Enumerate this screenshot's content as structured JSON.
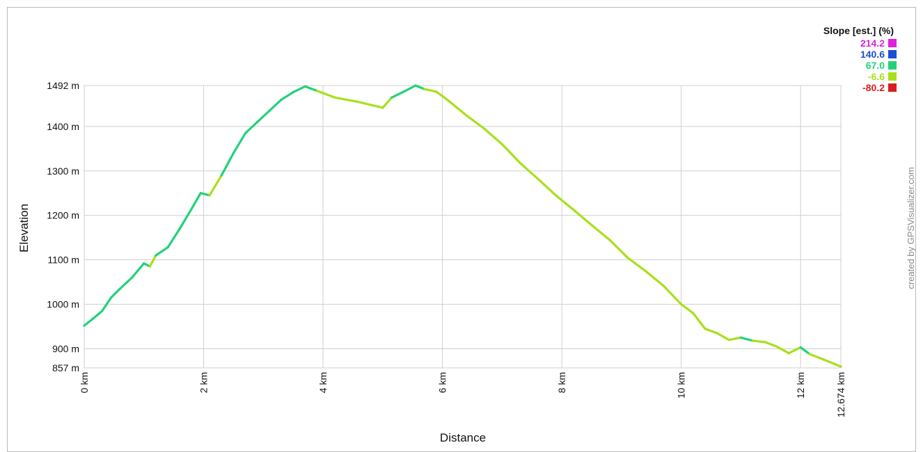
{
  "chart_data": {
    "type": "line",
    "xlabel": "Distance",
    "ylabel": "Elevation",
    "xlim": [
      0,
      12.674
    ],
    "ylim": [
      857,
      1492
    ],
    "x_ticks": [
      {
        "value": 0,
        "label": "0 km"
      },
      {
        "value": 2,
        "label": "2 km"
      },
      {
        "value": 4,
        "label": "4 km"
      },
      {
        "value": 6,
        "label": "6 km"
      },
      {
        "value": 8,
        "label": "8 km"
      },
      {
        "value": 10,
        "label": "10 km"
      },
      {
        "value": 12,
        "label": "12 km"
      },
      {
        "value": 12.674,
        "label": "12.674 km"
      }
    ],
    "y_ticks": [
      {
        "value": 857,
        "label": "857 m"
      },
      {
        "value": 900,
        "label": "900 m"
      },
      {
        "value": 1000,
        "label": "1000 m"
      },
      {
        "value": 1100,
        "label": "1100 m"
      },
      {
        "value": 1200,
        "label": "1200 m"
      },
      {
        "value": 1300,
        "label": "1300 m"
      },
      {
        "value": 1400,
        "label": "1400 m"
      },
      {
        "value": 1492,
        "label": "1492 m"
      }
    ],
    "grid": true,
    "legend": {
      "title": "Slope [est.] (%)",
      "placement": "top-right",
      "entries": [
        {
          "label": "214.2",
          "color": "#e020e0"
        },
        {
          "label": "140.6",
          "color": "#1a4fd6"
        },
        {
          "label": "67.0",
          "color": "#22d27a"
        },
        {
          "label": "-6.6",
          "color": "#a8e01a"
        },
        {
          "label": "-80.2",
          "color": "#d81e1e"
        }
      ]
    },
    "series": [
      {
        "x": [
          0,
          0.15,
          0.3,
          0.45,
          0.6,
          0.8,
          1.0,
          1.1,
          1.2,
          1.4,
          1.6,
          1.8,
          1.95,
          2.1,
          2.3,
          2.5,
          2.7,
          2.9,
          3.1,
          3.3,
          3.5,
          3.7,
          3.9,
          4.2,
          4.6,
          5.0,
          5.15,
          5.35,
          5.55,
          5.7,
          5.9,
          6.1,
          6.4,
          6.7,
          7.0,
          7.3,
          7.6,
          7.9,
          8.2,
          8.5,
          8.8,
          9.1,
          9.4,
          9.7,
          10.0,
          10.2,
          10.4,
          10.6,
          10.8,
          11.0,
          11.2,
          11.4,
          11.6,
          11.8,
          12.0,
          12.15,
          12.4,
          12.674
        ],
        "y": [
          952,
          968,
          985,
          1015,
          1035,
          1060,
          1092,
          1085,
          1110,
          1128,
          1170,
          1215,
          1250,
          1245,
          1290,
          1340,
          1385,
          1410,
          1435,
          1460,
          1477,
          1490,
          1480,
          1465,
          1455,
          1442,
          1465,
          1478,
          1492,
          1484,
          1478,
          1458,
          1425,
          1395,
          1360,
          1318,
          1282,
          1245,
          1212,
          1178,
          1145,
          1105,
          1075,
          1042,
          1000,
          980,
          945,
          935,
          920,
          925,
          918,
          915,
          905,
          890,
          903,
          888,
          875,
          860
        ],
        "colors": [
          "#22d27a",
          "#22d27a",
          "#22d27a",
          "#22d27a",
          "#22d27a",
          "#22d27a",
          "#22d27a",
          "#a8e01a",
          "#22d27a",
          "#22d27a",
          "#22d27a",
          "#22d27a",
          "#22d27a",
          "#a8e01a",
          "#22d27a",
          "#22d27a",
          "#22d27a",
          "#22d27a",
          "#22d27a",
          "#22d27a",
          "#22d27a",
          "#22d27a",
          "#a8e01a",
          "#a8e01a",
          "#a8e01a",
          "#a8e01a",
          "#22d27a",
          "#22d27a",
          "#22d27a",
          "#a8e01a",
          "#a8e01a",
          "#a8e01a",
          "#a8e01a",
          "#a8e01a",
          "#a8e01a",
          "#a8e01a",
          "#a8e01a",
          "#a8e01a",
          "#a8e01a",
          "#a8e01a",
          "#a8e01a",
          "#a8e01a",
          "#a8e01a",
          "#a8e01a",
          "#a8e01a",
          "#a8e01a",
          "#a8e01a",
          "#a8e01a",
          "#a8e01a",
          "#22d27a",
          "#a8e01a",
          "#a8e01a",
          "#a8e01a",
          "#a8e01a",
          "#22d27a",
          "#a8e01a",
          "#a8e01a"
        ]
      }
    ]
  },
  "credit": "created by GPSVisualizer.com"
}
